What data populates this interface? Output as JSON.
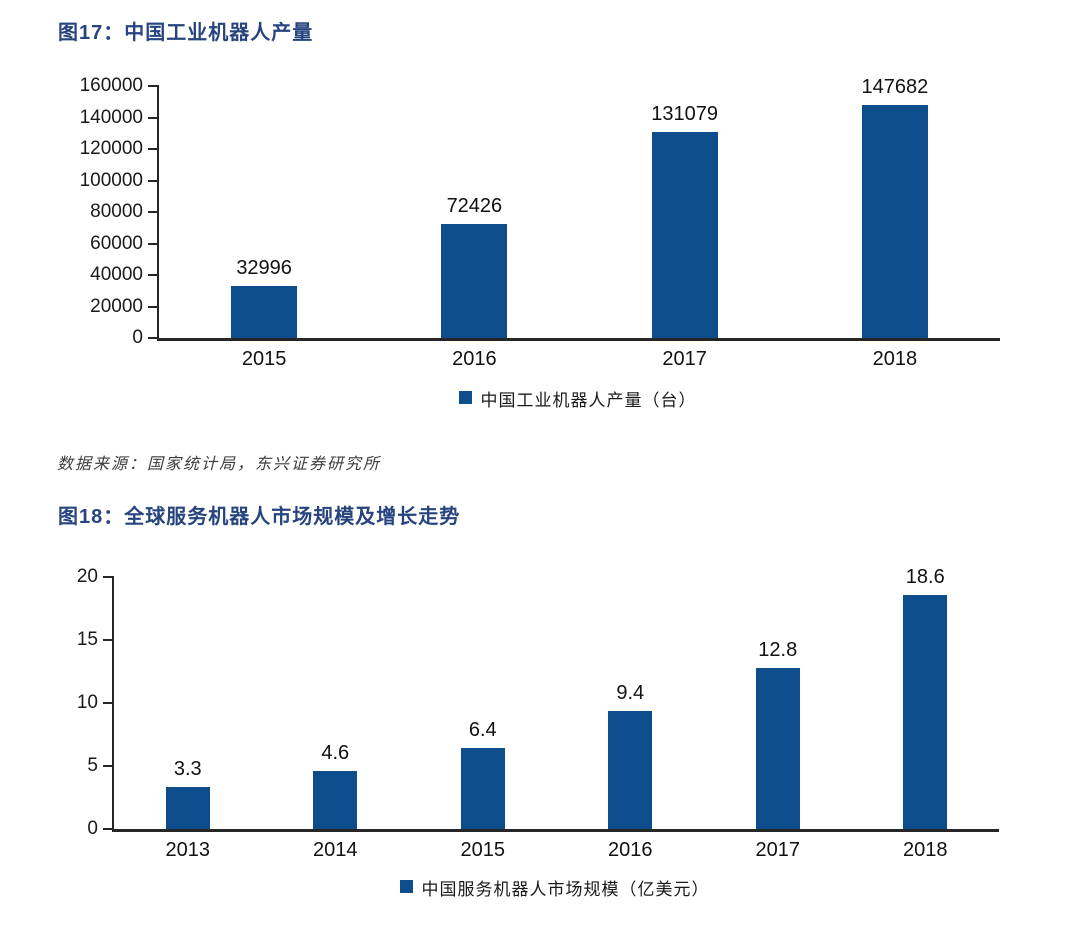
{
  "fig17": {
    "title": "图17：中国工业机器人产量",
    "legend": "中国工业机器人产量（台）"
  },
  "source_note": "数据来源：国家统计局，东兴证券研究所",
  "fig18": {
    "title": "图18：全球服务机器人市场规模及增长走势",
    "legend": "中国服务机器人市场规模（亿美元）"
  },
  "colors": {
    "bar": "#0E4D8C",
    "title": "#27447F",
    "axis": "#262626",
    "label_text": "#111111",
    "source_text": "#3d3d3d"
  },
  "chart_data": [
    {
      "type": "bar",
      "title": "图17：中国工业机器人产量",
      "categories": [
        "2015",
        "2016",
        "2017",
        "2018"
      ],
      "values": [
        32996,
        72426,
        131079,
        147682
      ],
      "ylim": [
        0,
        160000
      ],
      "yticks": [
        0,
        20000,
        40000,
        60000,
        80000,
        100000,
        120000,
        140000,
        160000
      ],
      "xlabel": "",
      "ylabel": "",
      "legend": [
        "中国工业机器人产量（台）"
      ],
      "legend_position": "bottom",
      "grid": false,
      "data_labels": true,
      "bar_color": "#0E4D8C"
    },
    {
      "type": "bar",
      "title": "图18：全球服务机器人市场规模及增长走势",
      "categories": [
        "2013",
        "2014",
        "2015",
        "2016",
        "2017",
        "2018"
      ],
      "values": [
        3.3,
        4.6,
        6.4,
        9.4,
        12.8,
        18.6
      ],
      "ylim": [
        0,
        20
      ],
      "yticks": [
        0,
        5,
        10,
        15,
        20
      ],
      "xlabel": "",
      "ylabel": "",
      "legend": [
        "中国服务机器人市场规模（亿美元）"
      ],
      "legend_position": "bottom",
      "grid": false,
      "data_labels": true,
      "bar_color": "#0E4D8C"
    }
  ]
}
